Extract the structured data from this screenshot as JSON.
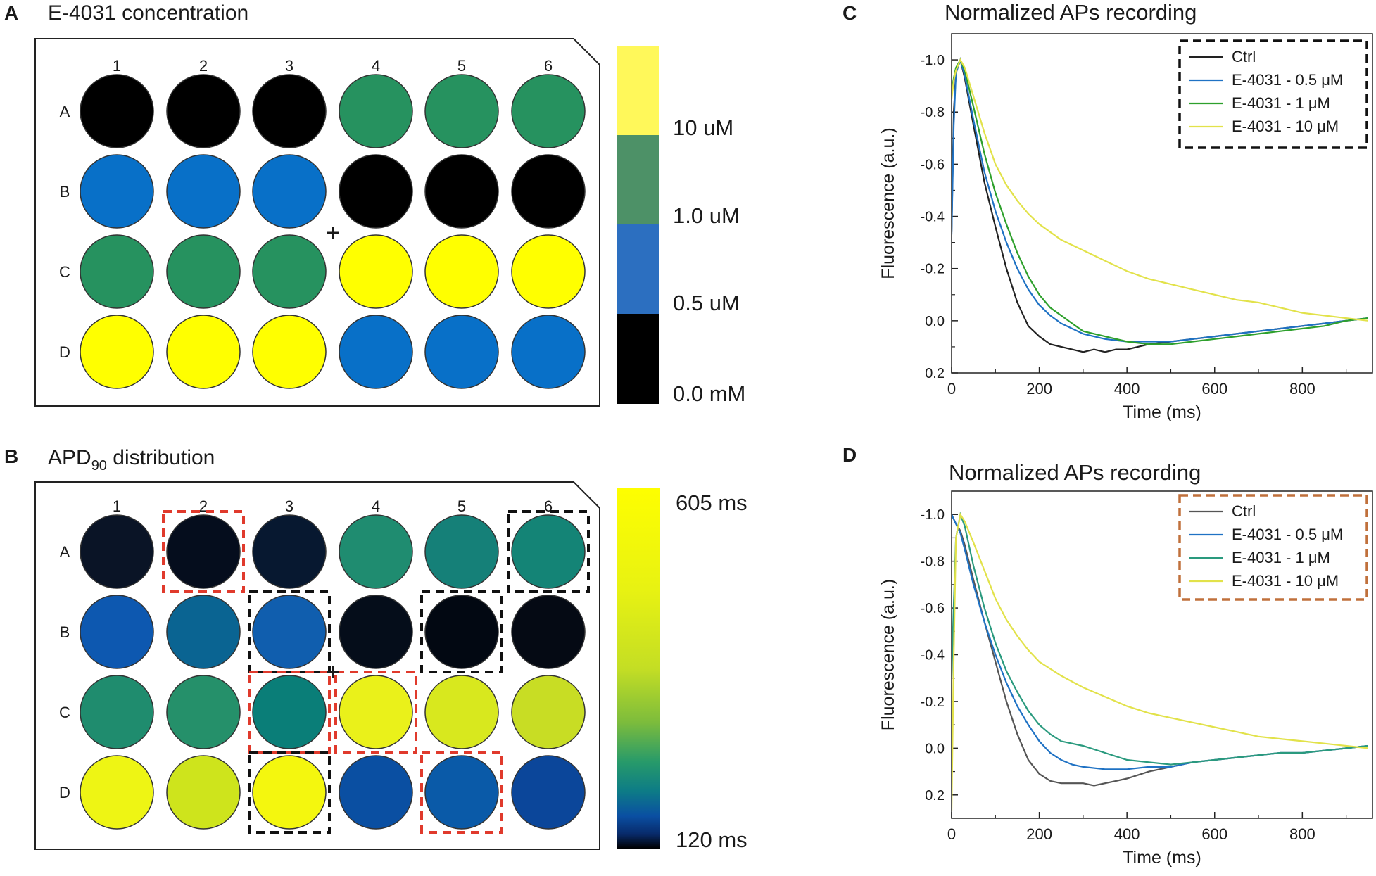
{
  "colors": {
    "black": "#000000",
    "blue": "#0870c8",
    "green": "#26925f",
    "yellow": "#ffff00",
    "scale_yellow": "#fff85a",
    "scale_green": "#4d9167",
    "scale_blue": "#2c6fc0",
    "red_dash": "#e03a2c",
    "black_dash": "#111111",
    "brown_dash": "#c0703c",
    "series_ctrl": "#222222",
    "series_05": "#1f72c4",
    "series_1": "#2ea02c",
    "series_10": "#e2e24a"
  },
  "panels": {
    "A": {
      "letter": "A",
      "title": "E-4031 concentration",
      "columns": [
        "1",
        "2",
        "3",
        "4",
        "5",
        "6"
      ],
      "rows": [
        "A",
        "B",
        "C",
        "D"
      ],
      "wells": [
        [
          "#000000",
          "#000000",
          "#000000",
          "#26925f",
          "#26925f",
          "#26925f"
        ],
        [
          "#0870c8",
          "#0870c8",
          "#0870c8",
          "#000000",
          "#000000",
          "#000000"
        ],
        [
          "#26925f",
          "#26925f",
          "#26925f",
          "#ffff00",
          "#ffff00",
          "#ffff00"
        ],
        [
          "#ffff00",
          "#ffff00",
          "#ffff00",
          "#0870c8",
          "#0870c8",
          "#0870c8"
        ]
      ],
      "legend_labels": [
        "10 uM",
        "1.0 uM",
        "0.5 uM",
        "0.0 mM"
      ],
      "plus": "+"
    },
    "B": {
      "letter": "B",
      "title_main": "APD",
      "title_sub": "90",
      "title_rest": " distribution",
      "columns": [
        "1",
        "2",
        "3",
        "4",
        "5",
        "6"
      ],
      "rows": [
        "A",
        "B",
        "C",
        "D"
      ],
      "wells": [
        [
          "#0a1426",
          "#050d1d",
          "#071830",
          "#1f8c70",
          "#158078",
          "#148476"
        ],
        [
          "#0d58b0",
          "#0a6492",
          "#105eae",
          "#050d1a",
          "#020812",
          "#050a14"
        ],
        [
          "#1f8c6e",
          "#25906a",
          "#0a7e78",
          "#eaf11a",
          "#d8e81e",
          "#c8dd24"
        ],
        [
          "#eef514",
          "#cee41c",
          "#f4f70e",
          "#0a4fa2",
          "#0a5aa8",
          "#0b469a"
        ]
      ],
      "dashed_boxes": [
        {
          "row": 0,
          "col": 1,
          "color": "red"
        },
        {
          "row": 0,
          "col": 5,
          "color": "black"
        },
        {
          "row": 1,
          "col": 2,
          "color": "black"
        },
        {
          "row": 1,
          "col": 4,
          "color": "black"
        },
        {
          "row": 2,
          "col": 2,
          "color": "red"
        },
        {
          "row": 2,
          "col": 3,
          "color": "red"
        },
        {
          "row": 3,
          "col": 2,
          "color": "black"
        },
        {
          "row": 3,
          "col": 4,
          "color": "red"
        }
      ],
      "scale_max_label": "605 ms",
      "scale_min_label": "120 ms",
      "plus": "+"
    }
  },
  "chart_data": [
    {
      "panel": "C",
      "type": "line",
      "title": "Normalized APs recording",
      "xlabel": "Time (ms)",
      "ylabel": "Fluorescence (a.u.)",
      "xlim": [
        0,
        960
      ],
      "ylim": [
        -1.1,
        0.2
      ],
      "y_reversed": true,
      "xticks": [
        0,
        200,
        400,
        600,
        800
      ],
      "xtick_labels": [
        "0",
        "200",
        "400",
        "600",
        "800"
      ],
      "yticks": [
        -1.0,
        -0.8,
        -0.6,
        -0.4,
        -0.2,
        0.0,
        0.2
      ],
      "ytick_labels": [
        "-1.0",
        "-0.8",
        "-0.6",
        "-0.4",
        "-0.2",
        "0.0",
        "0.2"
      ],
      "legend_position": "top-right",
      "legend_box_color": "black",
      "series": [
        {
          "name": "Ctrl",
          "color": "#222222",
          "x": [
            0,
            5,
            10,
            20,
            30,
            50,
            75,
            100,
            125,
            150,
            175,
            200,
            225,
            250,
            275,
            300,
            325,
            350,
            375,
            400,
            425,
            450,
            500,
            550,
            600,
            650,
            700,
            750,
            800,
            850,
            900,
            950
          ],
          "y": [
            -0.34,
            -0.8,
            -0.95,
            -1.0,
            -0.93,
            -0.75,
            -0.53,
            -0.36,
            -0.2,
            -0.07,
            0.02,
            0.06,
            0.09,
            0.1,
            0.11,
            0.12,
            0.11,
            0.12,
            0.11,
            0.11,
            0.1,
            0.09,
            0.08,
            0.07,
            0.06,
            0.05,
            0.04,
            0.03,
            0.02,
            0.01,
            0.0,
            -0.01
          ]
        },
        {
          "name": "E-4031 - 0.5 μM",
          "color": "#1f72c4",
          "x": [
            0,
            5,
            10,
            20,
            30,
            50,
            75,
            100,
            125,
            150,
            175,
            200,
            225,
            250,
            275,
            300,
            350,
            400,
            450,
            500,
            550,
            600,
            650,
            700,
            750,
            800,
            850,
            900,
            950
          ],
          "y": [
            -0.33,
            -0.75,
            -0.95,
            -1.0,
            -0.94,
            -0.77,
            -0.57,
            -0.42,
            -0.3,
            -0.2,
            -0.12,
            -0.06,
            -0.02,
            0.01,
            0.03,
            0.05,
            0.07,
            0.08,
            0.08,
            0.08,
            0.07,
            0.06,
            0.05,
            0.04,
            0.03,
            0.02,
            0.01,
            0.0,
            -0.01
          ]
        },
        {
          "name": "E-4031 - 1 μM",
          "color": "#2ea02c",
          "x": [
            0,
            5,
            10,
            20,
            30,
            50,
            75,
            100,
            125,
            150,
            175,
            200,
            225,
            250,
            275,
            300,
            350,
            400,
            450,
            500,
            550,
            600,
            650,
            700,
            750,
            800,
            850,
            900,
            950
          ],
          "y": [
            -0.88,
            -0.93,
            -0.97,
            -1.0,
            -0.96,
            -0.82,
            -0.64,
            -0.49,
            -0.37,
            -0.26,
            -0.17,
            -0.1,
            -0.05,
            -0.02,
            0.01,
            0.04,
            0.06,
            0.08,
            0.09,
            0.09,
            0.08,
            0.07,
            0.06,
            0.05,
            0.04,
            0.03,
            0.02,
            0.0,
            -0.01
          ]
        },
        {
          "name": "E-4031 - 10 μM",
          "color": "#e2e24a",
          "x": [
            0,
            5,
            10,
            20,
            30,
            50,
            75,
            100,
            125,
            150,
            175,
            200,
            250,
            300,
            350,
            400,
            450,
            500,
            550,
            600,
            650,
            700,
            750,
            800,
            850,
            900,
            950
          ],
          "y": [
            -0.85,
            -0.92,
            -0.96,
            -1.0,
            -0.97,
            -0.86,
            -0.72,
            -0.6,
            -0.52,
            -0.46,
            -0.41,
            -0.37,
            -0.31,
            -0.27,
            -0.23,
            -0.19,
            -0.16,
            -0.14,
            -0.12,
            -0.1,
            -0.08,
            -0.07,
            -0.05,
            -0.03,
            -0.02,
            -0.01,
            0.0
          ]
        }
      ]
    },
    {
      "panel": "D",
      "type": "line",
      "title": "Normalized APs recording",
      "xlabel": "Time (ms)",
      "ylabel": "Fluorescence (a.u.)",
      "xlim": [
        0,
        960
      ],
      "ylim": [
        -1.1,
        0.3
      ],
      "y_reversed": true,
      "xticks": [
        0,
        200,
        400,
        600,
        800
      ],
      "xtick_labels": [
        "0",
        "200",
        "400",
        "600",
        "800"
      ],
      "yticks": [
        -1.0,
        -0.8,
        -0.6,
        -0.4,
        -0.2,
        0.0,
        0.2
      ],
      "ytick_labels": [
        "-1.0",
        "-0.8",
        "-0.6",
        "-0.4",
        "-0.2",
        "0.0",
        "0.2"
      ],
      "legend_position": "top-right",
      "legend_box_color": "brown",
      "series": [
        {
          "name": "Ctrl",
          "color": "#555555",
          "x": [
            0,
            5,
            10,
            20,
            30,
            50,
            75,
            100,
            125,
            150,
            175,
            200,
            225,
            250,
            275,
            300,
            325,
            350,
            375,
            400,
            450,
            500,
            550,
            600,
            650,
            700,
            750,
            800,
            850,
            900,
            950
          ],
          "y": [
            -1.0,
            -0.98,
            -0.96,
            -0.93,
            -0.87,
            -0.72,
            -0.54,
            -0.37,
            -0.2,
            -0.06,
            0.05,
            0.11,
            0.14,
            0.15,
            0.15,
            0.15,
            0.16,
            0.15,
            0.14,
            0.13,
            0.1,
            0.08,
            0.06,
            0.05,
            0.04,
            0.03,
            0.02,
            0.02,
            0.01,
            0.0,
            -0.01
          ]
        },
        {
          "name": "E-4031 - 0.5 μM",
          "color": "#1f72c4",
          "x": [
            0,
            5,
            10,
            20,
            30,
            50,
            75,
            100,
            125,
            150,
            175,
            200,
            225,
            250,
            275,
            300,
            350,
            400,
            450,
            500,
            550,
            600,
            650,
            700,
            750,
            800,
            850,
            900,
            950
          ],
          "y": [
            -1.0,
            -0.98,
            -0.96,
            -0.92,
            -0.85,
            -0.7,
            -0.54,
            -0.4,
            -0.28,
            -0.18,
            -0.1,
            -0.03,
            0.02,
            0.05,
            0.07,
            0.08,
            0.09,
            0.09,
            0.08,
            0.08,
            0.06,
            0.05,
            0.04,
            0.03,
            0.02,
            0.02,
            0.01,
            0.0,
            -0.01
          ]
        },
        {
          "name": "E-4031 - 1 μM",
          "color": "#2a9a7e",
          "x": [
            0,
            5,
            10,
            20,
            30,
            50,
            75,
            100,
            125,
            150,
            175,
            200,
            225,
            250,
            275,
            300,
            350,
            400,
            450,
            500,
            550,
            600,
            650,
            700,
            750,
            800,
            850,
            900,
            950
          ],
          "y": [
            -0.3,
            -0.62,
            -0.9,
            -1.0,
            -0.95,
            -0.78,
            -0.6,
            -0.45,
            -0.33,
            -0.24,
            -0.16,
            -0.1,
            -0.06,
            -0.03,
            -0.02,
            -0.01,
            0.02,
            0.05,
            0.06,
            0.07,
            0.06,
            0.05,
            0.04,
            0.03,
            0.02,
            0.02,
            0.01,
            0.0,
            -0.01
          ]
        },
        {
          "name": "E-4031 - 10 μM",
          "color": "#e2e24a",
          "x": [
            0,
            5,
            10,
            20,
            30,
            50,
            75,
            100,
            125,
            150,
            175,
            200,
            250,
            300,
            350,
            400,
            450,
            500,
            550,
            600,
            650,
            700,
            750,
            800,
            850,
            900,
            950
          ],
          "y": [
            0.27,
            -0.4,
            -0.9,
            -1.0,
            -0.97,
            -0.88,
            -0.76,
            -0.64,
            -0.55,
            -0.48,
            -0.42,
            -0.37,
            -0.31,
            -0.26,
            -0.22,
            -0.18,
            -0.15,
            -0.13,
            -0.11,
            -0.09,
            -0.07,
            -0.05,
            -0.04,
            -0.03,
            -0.02,
            -0.01,
            0.0
          ]
        }
      ]
    }
  ]
}
